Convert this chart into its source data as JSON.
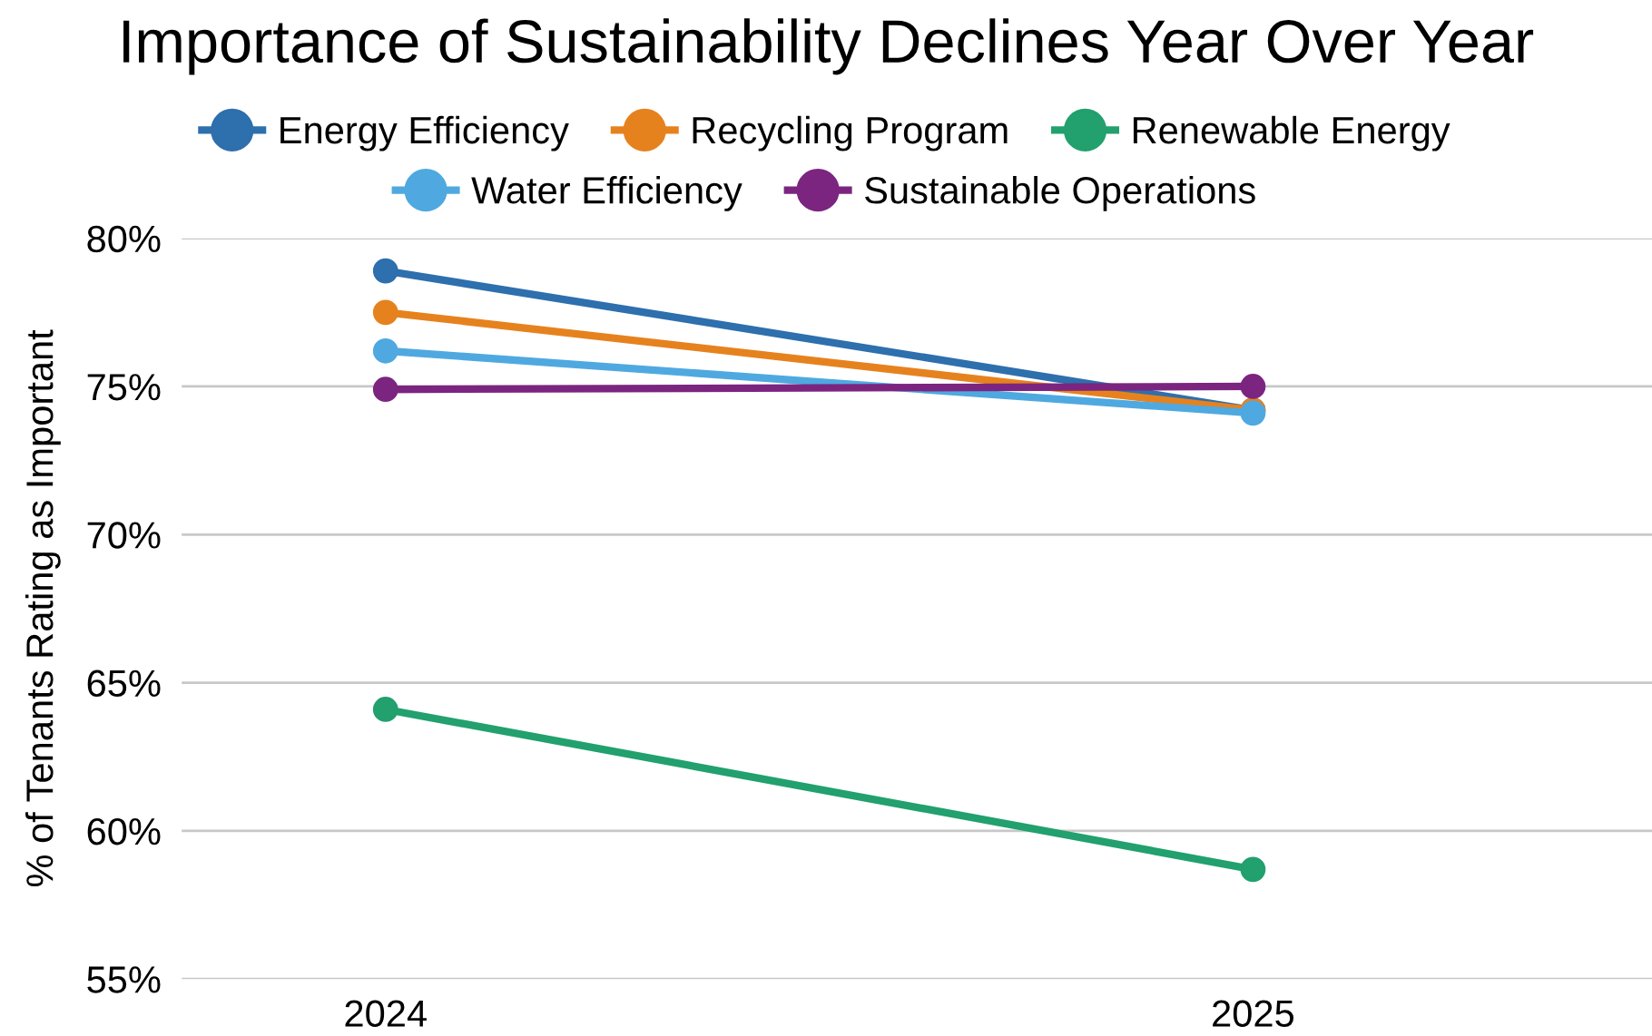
{
  "chart_data": {
    "type": "line",
    "title": "Importance of Sustainability Declines Year Over Year",
    "ylabel": "% of Tenants Rating as Important",
    "categories": [
      "2024",
      "2025"
    ],
    "series": [
      {
        "name": "Energy Efficiency",
        "color": "#2e6fad",
        "values": [
          78.9,
          74.2
        ]
      },
      {
        "name": "Recycling Program",
        "color": "#e6821e",
        "values": [
          77.5,
          74.2
        ]
      },
      {
        "name": "Renewable Energy",
        "color": "#22a06e",
        "values": [
          64.1,
          58.7
        ]
      },
      {
        "name": "Water Efficiency",
        "color": "#4fa9e0",
        "values": [
          76.2,
          74.1
        ]
      },
      {
        "name": "Sustainable Operations",
        "color": "#7b2580",
        "values": [
          74.9,
          75.0
        ]
      }
    ],
    "ylim": [
      55,
      80
    ],
    "yticks": [
      {
        "value": 55,
        "label": "55%"
      },
      {
        "value": 60,
        "label": "60%"
      },
      {
        "value": 65,
        "label": "65%"
      },
      {
        "value": 70,
        "label": "70%"
      },
      {
        "value": 75,
        "label": "75%"
      },
      {
        "value": 80,
        "label": "80%"
      }
    ],
    "grid": "y",
    "legend": "top",
    "marker": "circle",
    "line_style": "solid"
  }
}
